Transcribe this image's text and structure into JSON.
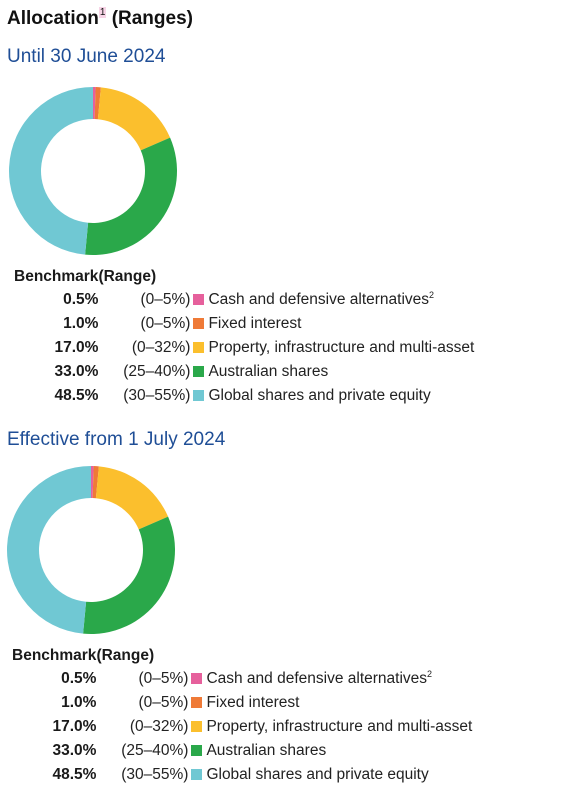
{
  "title": "Allocation",
  "title_footnote": "1",
  "colors": {
    "cash": "#e6609c",
    "fixed": "#ef7a37",
    "property": "#fbbf2d",
    "australian": "#2aa84a",
    "global": "#70c8d3"
  },
  "chart_data": [
    {
      "type": "pie",
      "title": "Until 30 June 2024",
      "legend_header": {
        "benchmark": "Benchmark",
        "range": "(Range)"
      },
      "slices": [
        {
          "label": "Cash and defensive alternatives",
          "footnote": "2",
          "benchmark_text": "0.5%",
          "value": 0.5,
          "range": "(0–5%)",
          "color": "#e6609c"
        },
        {
          "label": "Fixed interest",
          "footnote": "",
          "benchmark_text": "1.0%",
          "value": 1.0,
          "range": "(0–5%)",
          "color": "#ef7a37"
        },
        {
          "label": "Property, infrastructure and multi-asset",
          "footnote": "",
          "benchmark_text": "17.0%",
          "value": 17.0,
          "range": "(0–32%)",
          "color": "#fbbf2d"
        },
        {
          "label": "Australian shares",
          "footnote": "",
          "benchmark_text": "33.0%",
          "value": 33.0,
          "range": "(25–40%)",
          "color": "#2aa84a"
        },
        {
          "label": "Global shares and private equity",
          "footnote": "",
          "benchmark_text": "48.5%",
          "value": 48.5,
          "range": "(30–55%)",
          "color": "#70c8d3"
        }
      ]
    },
    {
      "type": "pie",
      "title": "Effective from 1 July 2024",
      "legend_header": {
        "benchmark": "Benchmark",
        "range": "(Range)"
      },
      "slices": [
        {
          "label": "Cash and defensive alternatives",
          "footnote": "2",
          "benchmark_text": "0.5%",
          "value": 0.5,
          "range": "(0–5%)",
          "color": "#e6609c"
        },
        {
          "label": "Fixed interest",
          "footnote": "",
          "benchmark_text": "1.0%",
          "value": 1.0,
          "range": "(0–5%)",
          "color": "#ef7a37"
        },
        {
          "label": "Property, infrastructure and multi-asset",
          "footnote": "",
          "benchmark_text": "17.0%",
          "value": 17.0,
          "range": "(0–32%)",
          "color": "#fbbf2d"
        },
        {
          "label": "Australian shares",
          "footnote": "",
          "benchmark_text": "33.0%",
          "value": 33.0,
          "range": "(25–40%)",
          "color": "#2aa84a"
        },
        {
          "label": "Global shares and private equity",
          "footnote": "",
          "benchmark_text": "48.5%",
          "value": 48.5,
          "range": "(30–55%)",
          "color": "#70c8d3"
        }
      ]
    }
  ]
}
